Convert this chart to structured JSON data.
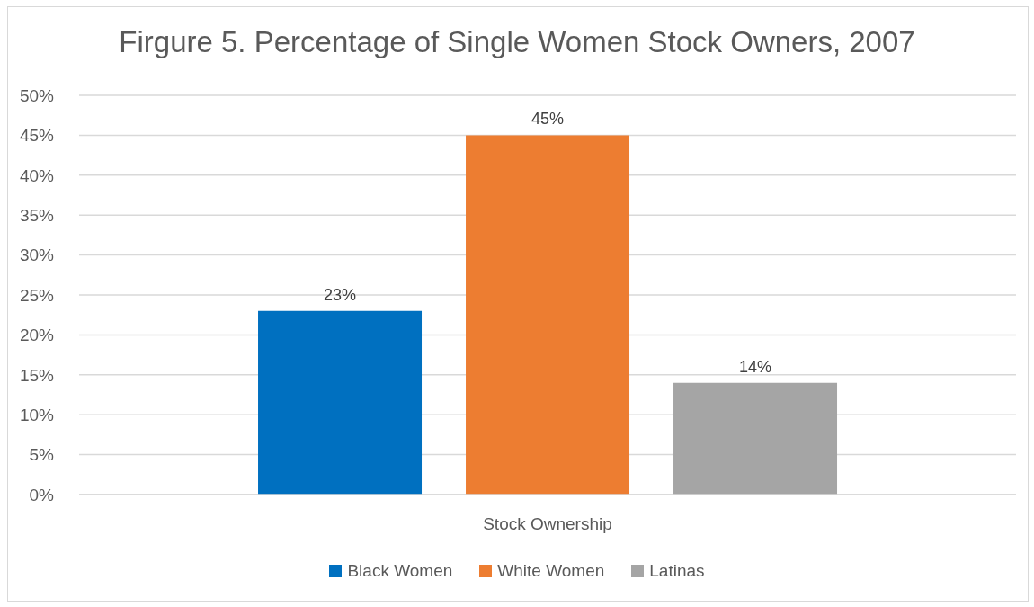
{
  "chart_data": {
    "type": "bar",
    "title": "Firgure 5. Percentage of Single Women Stock Owners, 2007",
    "categories": [
      "Stock Ownership"
    ],
    "series": [
      {
        "name": "Black Women",
        "color": "#0070c0",
        "values": [
          23
        ],
        "value_labels": [
          "23%"
        ]
      },
      {
        "name": "White Women",
        "color": "#ed7d31",
        "values": [
          45
        ],
        "value_labels": [
          "45%"
        ]
      },
      {
        "name": "Latinas",
        "color": "#a5a5a5",
        "values": [
          14
        ],
        "value_labels": [
          "14%"
        ]
      }
    ],
    "ylim": [
      0,
      50
    ],
    "yticks": [
      {
        "value": 0,
        "label": "0%"
      },
      {
        "value": 5,
        "label": "5%"
      },
      {
        "value": 10,
        "label": "10%"
      },
      {
        "value": 15,
        "label": "15%"
      },
      {
        "value": 20,
        "label": "20%"
      },
      {
        "value": 25,
        "label": "25%"
      },
      {
        "value": 30,
        "label": "30%"
      },
      {
        "value": 35,
        "label": "35%"
      },
      {
        "value": 40,
        "label": "40%"
      },
      {
        "value": 45,
        "label": "45%"
      },
      {
        "value": 50,
        "label": "50%"
      }
    ],
    "grid": "y",
    "legend": "bottom"
  }
}
